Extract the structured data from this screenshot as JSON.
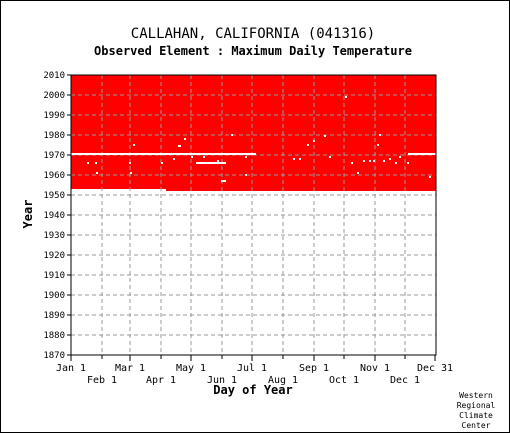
{
  "chart_data": {
    "type": "heatmap",
    "title": "CALLAHAN, CALIFORNIA   (041316)",
    "subtitle": "Observed Element : Maximum Daily Temperature",
    "xlabel": "Day of Year",
    "ylabel": "Year",
    "xlim": [
      1,
      366
    ],
    "ylim": [
      1870,
      2010
    ],
    "x_ticks_top": [
      {
        "label": "Jan 1",
        "day": 1
      },
      {
        "label": "Mar 1",
        "day": 60
      },
      {
        "label": "May 1",
        "day": 121
      },
      {
        "label": "Jul 1",
        "day": 182
      },
      {
        "label": "Sep 1",
        "day": 244
      },
      {
        "label": "Nov 1",
        "day": 305
      },
      {
        "label": "Dec 31",
        "day": 365
      }
    ],
    "x_ticks_bottom": [
      {
        "label": "Feb 1",
        "day": 32
      },
      {
        "label": "Apr 1",
        "day": 91
      },
      {
        "label": "Jun 1",
        "day": 152
      },
      {
        "label": "Aug 1",
        "day": 213
      },
      {
        "label": "Oct 1",
        "day": 274
      },
      {
        "label": "Dec 1",
        "day": 335
      }
    ],
    "y_ticks": [
      1870,
      1880,
      1890,
      1900,
      1910,
      1920,
      1930,
      1940,
      1950,
      1960,
      1970,
      1980,
      1990,
      2000,
      2010
    ],
    "grid": true,
    "data_color": "#ff0000",
    "data_period": {
      "start_year": 1953,
      "end_year": 2010
    },
    "record_start_step": {
      "day": 96,
      "year_before": 1953,
      "year_after": 1952
    },
    "missing_segments": [
      {
        "year": 1970.5,
        "day_start": 1,
        "day_end": 186
      },
      {
        "year": 1970.5,
        "day_start": 338,
        "day_end": 366
      },
      {
        "year": 1966,
        "day_start": 126,
        "day_end": 156
      },
      {
        "year": 1974.5,
        "day_start": 108,
        "day_end": 111
      },
      {
        "year": 1957,
        "day_start": 151,
        "day_end": 156
      },
      {
        "year": 1961,
        "day_start": 60,
        "day_end": 62
      },
      {
        "year": 1979.5,
        "day_start": 254,
        "day_end": 256
      }
    ],
    "missing_days": [
      {
        "day": 18,
        "year": 1966
      },
      {
        "day": 26,
        "year": 1966
      },
      {
        "day": 27,
        "year": 1961
      },
      {
        "day": 60,
        "year": 1966
      },
      {
        "day": 64,
        "year": 1975
      },
      {
        "day": 92,
        "year": 1966
      },
      {
        "day": 104,
        "year": 1968
      },
      {
        "day": 115,
        "year": 1978
      },
      {
        "day": 122,
        "year": 1969
      },
      {
        "day": 134,
        "year": 1969
      },
      {
        "day": 148,
        "year": 1967
      },
      {
        "day": 162,
        "year": 1980
      },
      {
        "day": 176,
        "year": 1969
      },
      {
        "day": 224,
        "year": 1968
      },
      {
        "day": 230,
        "year": 1968
      },
      {
        "day": 238,
        "year": 1975
      },
      {
        "day": 244,
        "year": 1977
      },
      {
        "day": 260,
        "year": 1969
      },
      {
        "day": 276,
        "year": 1999
      },
      {
        "day": 282,
        "year": 1966
      },
      {
        "day": 288,
        "year": 1961
      },
      {
        "day": 294,
        "year": 1967
      },
      {
        "day": 300,
        "year": 1967
      },
      {
        "day": 304,
        "year": 1967
      },
      {
        "day": 308,
        "year": 1975
      },
      {
        "day": 310,
        "year": 1980
      },
      {
        "day": 314,
        "year": 1967
      },
      {
        "day": 320,
        "year": 1968
      },
      {
        "day": 326,
        "year": 1966
      },
      {
        "day": 330,
        "year": 1969
      },
      {
        "day": 338,
        "year": 1966
      },
      {
        "day": 360,
        "year": 1959
      },
      {
        "day": 176,
        "year": 1960
      }
    ]
  },
  "credit": [
    "Western",
    "Regional",
    "Climate",
    "Center"
  ]
}
